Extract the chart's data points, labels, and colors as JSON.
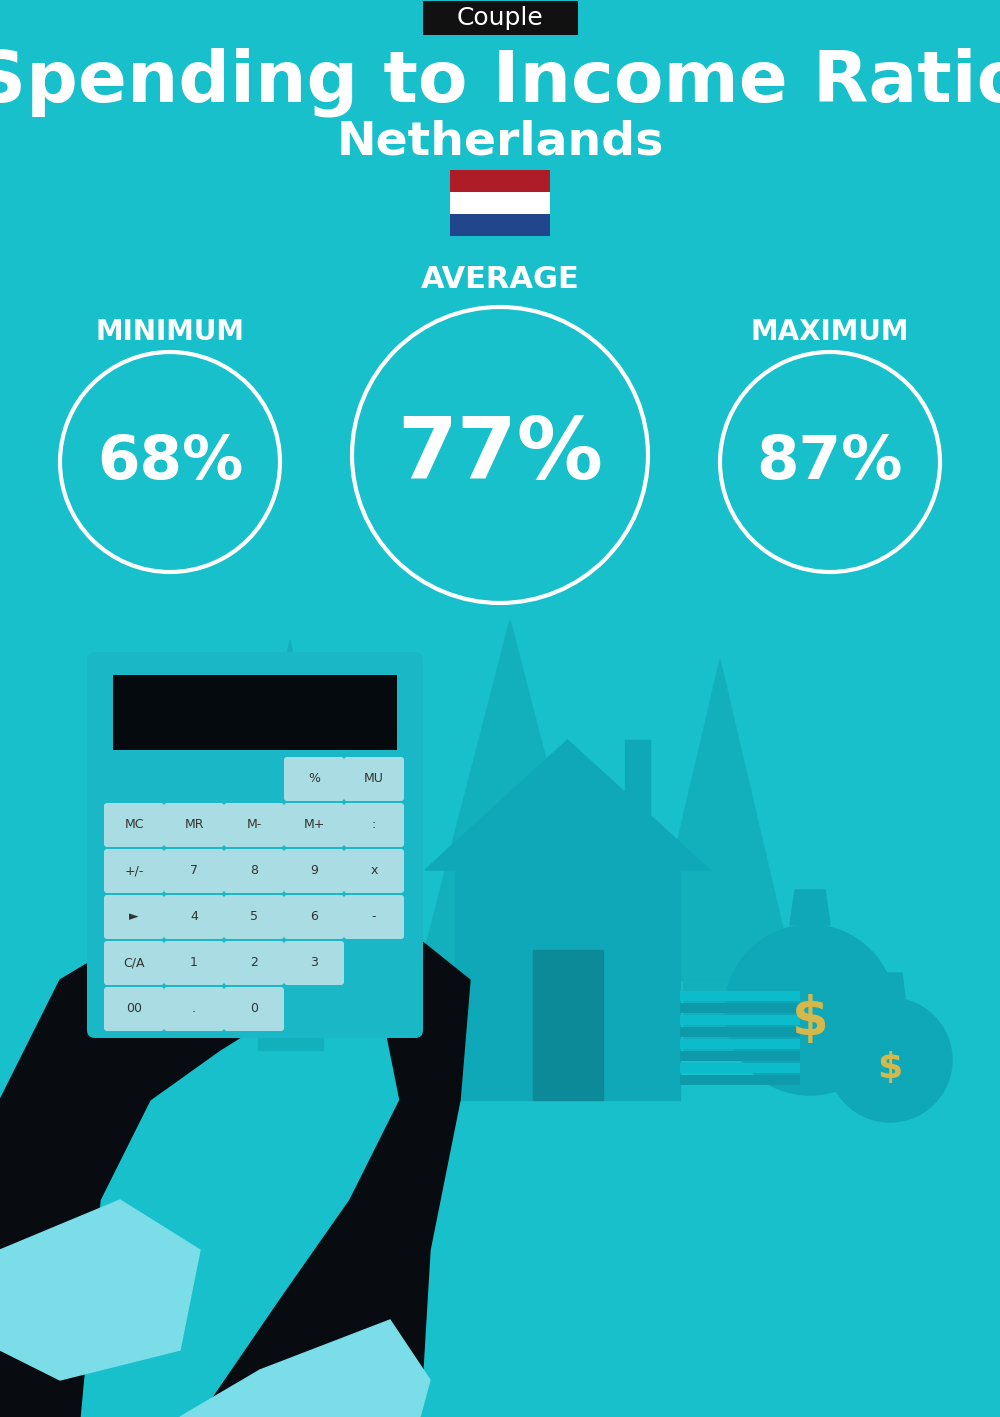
{
  "title": "Spending to Income Ratio",
  "subtitle": "Netherlands",
  "tag": "Couple",
  "bg_color": "#17C0CB",
  "tag_bg": "#111111",
  "tag_text_color": "#FFFFFF",
  "title_color": "#FFFFFF",
  "subtitle_color": "#FFFFFF",
  "min_label": "MINIMUM",
  "avg_label": "AVERAGE",
  "max_label": "MAXIMUM",
  "min_value": "68%",
  "avg_value": "77%",
  "max_value": "87%",
  "circle_color": "#FFFFFF",
  "circle_lw": 3.0,
  "label_color": "#FFFFFF",
  "value_color": "#FFFFFF",
  "flag_colors": [
    "#AE1C28",
    "#FFFFFF",
    "#21468B"
  ],
  "fig_width": 10.0,
  "fig_height": 14.17,
  "dpi": 100,
  "arrow_color": "#12AEBB",
  "house_color": "#0FA8B8",
  "door_color": "#0D8A98",
  "calc_color": "#1AB8C6",
  "calc_display_color": "#050A0F",
  "btn_color": "#AADDE3",
  "hand_color": "#080C10",
  "cuff_color": "#7ADDE8",
  "bag_color": "#0FA8B8",
  "dollar_color": "#D4B84A",
  "money_color": "#0D9AAA"
}
